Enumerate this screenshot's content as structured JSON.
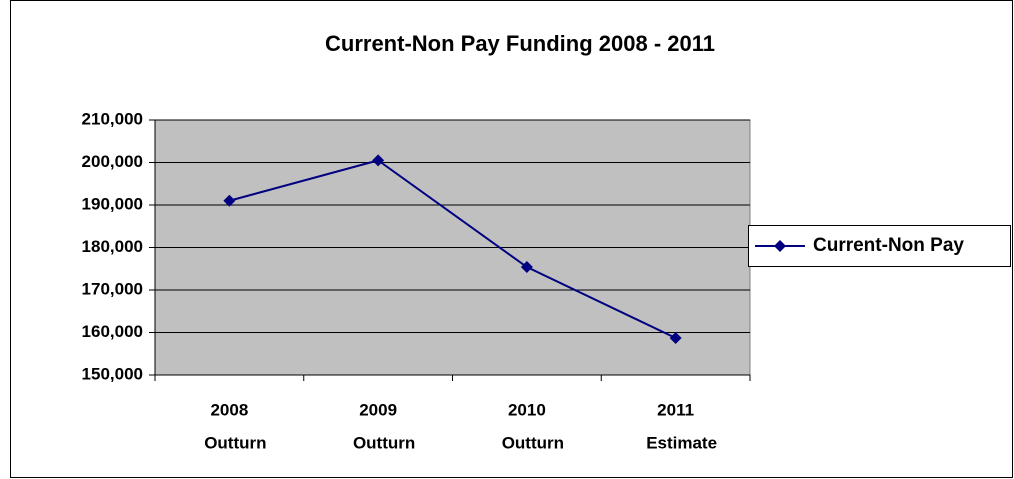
{
  "chart_data": {
    "type": "line",
    "title": "Current-Non Pay Funding 2008 - 2011",
    "categories": [
      [
        "2008",
        "Outturn"
      ],
      [
        "2009",
        "Outturn"
      ],
      [
        "2010",
        "Outturn"
      ],
      [
        "2011",
        "Estimate"
      ]
    ],
    "series": [
      {
        "name": "Current-Non Pay",
        "color": "#000080",
        "values": [
          191000,
          200500,
          175400,
          158700
        ]
      }
    ],
    "ylim": [
      150000,
      210000
    ],
    "yticks": [
      {
        "value": 150000,
        "label": "150,000"
      },
      {
        "value": 160000,
        "label": "160,000"
      },
      {
        "value": 170000,
        "label": "170,000"
      },
      {
        "value": 180000,
        "label": "180,000"
      },
      {
        "value": 190000,
        "label": "190,000"
      },
      {
        "value": 200000,
        "label": "200,000"
      },
      {
        "value": 210000,
        "label": "210,000"
      }
    ],
    "grid": true,
    "legend": "right",
    "plot_color": "#c0c0c0"
  }
}
